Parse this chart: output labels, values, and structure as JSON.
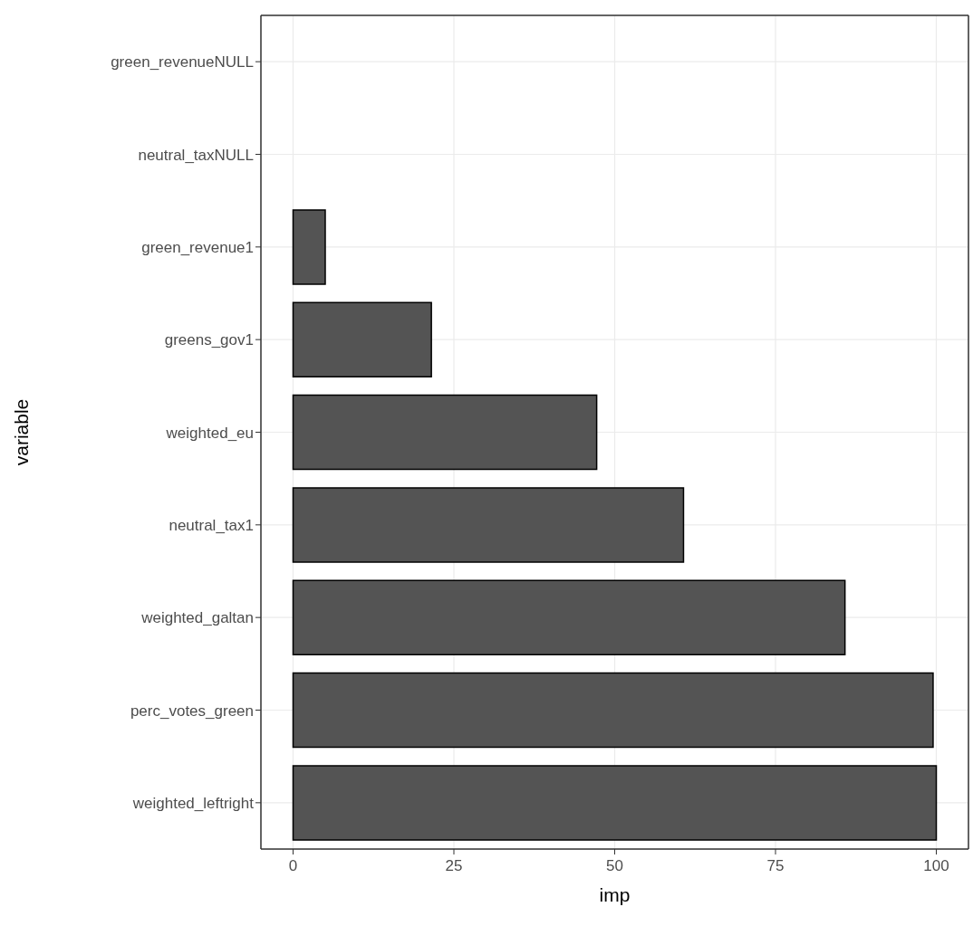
{
  "chart_data": {
    "type": "bar",
    "orientation": "horizontal",
    "xlabel": "imp",
    "ylabel": "variable",
    "categories": [
      "green_revenueNULL",
      "neutral_taxNULL",
      "green_revenue1",
      "greens_gov1",
      "weighted_eu",
      "neutral_tax1",
      "weighted_galtan",
      "perc_votes_green",
      "weighted_leftright"
    ],
    "values": [
      0,
      0,
      5.0,
      21.5,
      47.2,
      60.7,
      85.8,
      99.5,
      100
    ],
    "color": "#545454",
    "xlim": [
      -5,
      105
    ],
    "xticks": [
      0,
      25,
      50,
      75,
      100
    ],
    "grid": true
  }
}
